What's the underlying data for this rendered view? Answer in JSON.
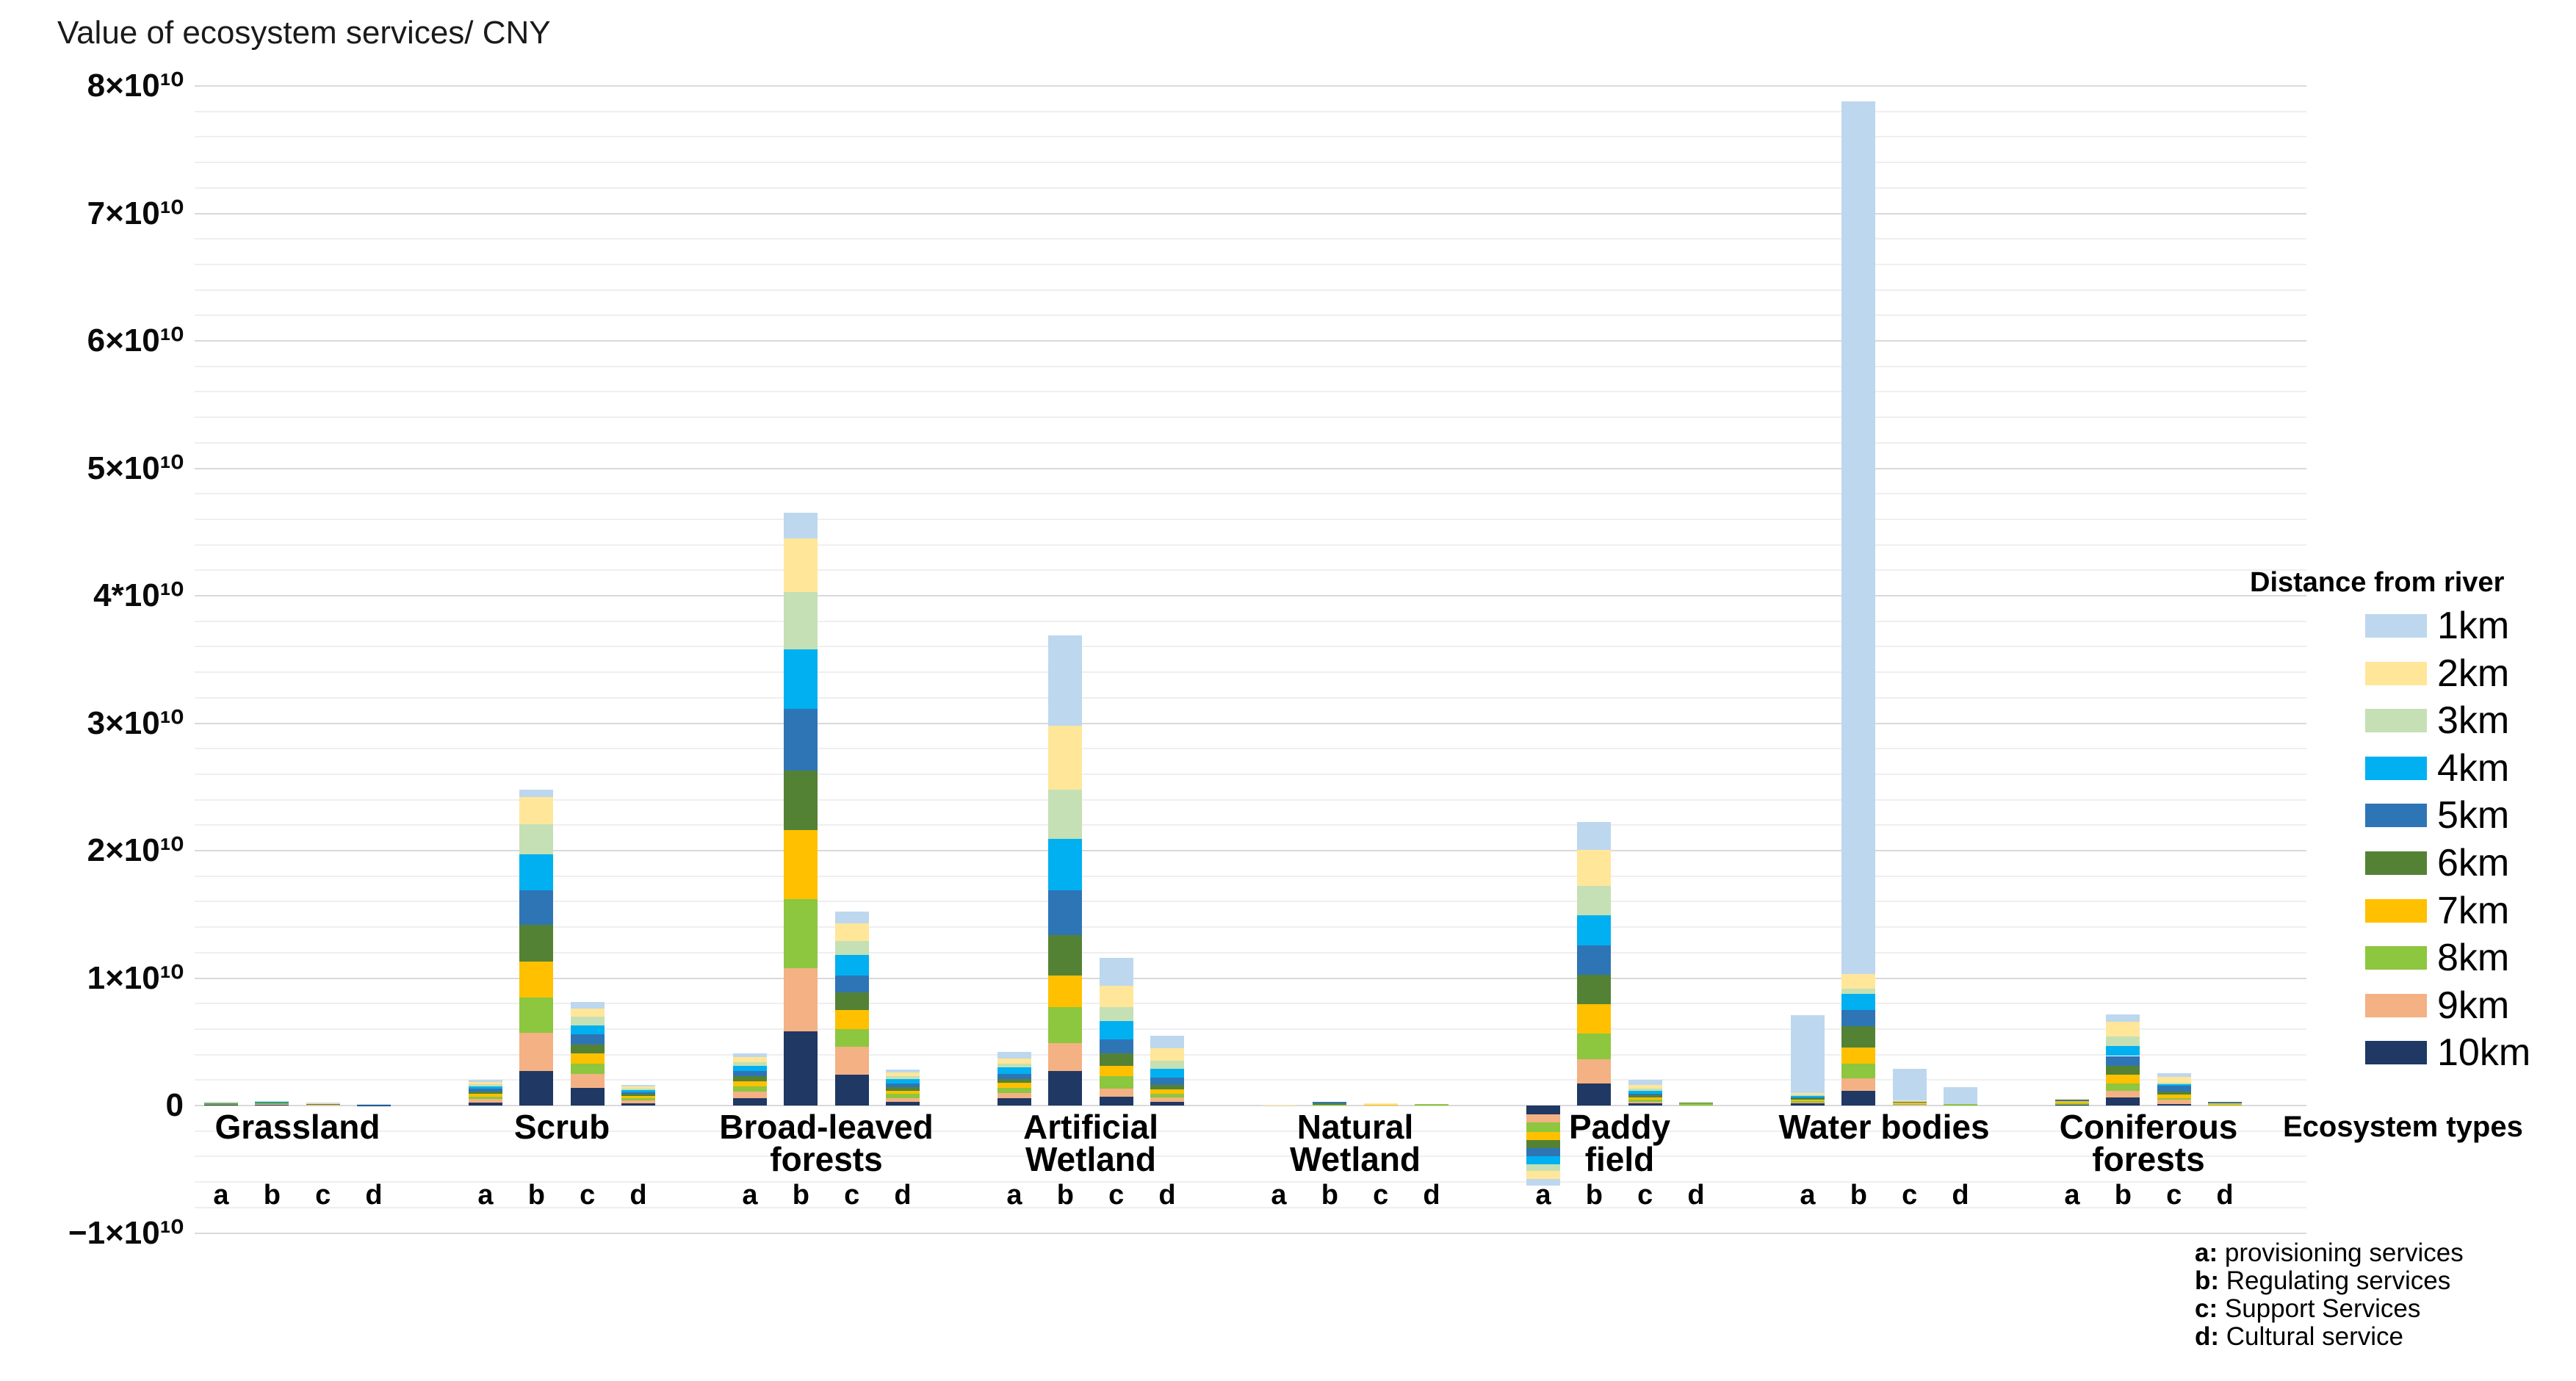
{
  "title": "Value of ecosystem services/ CNY",
  "x_axis_label": "Ecosystem types",
  "legend": {
    "title": "Distance from river",
    "items": [
      {
        "label": "1km",
        "color": "#BDD7EE"
      },
      {
        "label": "2km",
        "color": "#FFE699"
      },
      {
        "label": "3km",
        "color": "#C5E0B4"
      },
      {
        "label": "4km",
        "color": "#00B0F0"
      },
      {
        "label": "5km",
        "color": "#2E75B6"
      },
      {
        "label": "6km",
        "color": "#548235"
      },
      {
        "label": "7km",
        "color": "#FFC000"
      },
      {
        "label": "8km",
        "color": "#8DC63F"
      },
      {
        "label": "9km",
        "color": "#F4B183"
      },
      {
        "label": "10km",
        "color": "#1F3864"
      }
    ]
  },
  "footnotes": [
    {
      "key": "a:",
      "text": " provisioning services"
    },
    {
      "key": "b:",
      "text": " Regulating services"
    },
    {
      "key": "c:",
      "text": " Support Services"
    },
    {
      "key": "d:",
      "text": " Cultural service"
    }
  ],
  "y_axis": {
    "tick_labels": [
      {
        "value": 80,
        "label": "8×10¹⁰"
      },
      {
        "value": 70,
        "label": "7×10¹⁰"
      },
      {
        "value": 60,
        "label": "6×10¹⁰"
      },
      {
        "value": 50,
        "label": "5×10¹⁰"
      },
      {
        "value": 40,
        "label": "4*10¹⁰"
      },
      {
        "value": 30,
        "label": "3×10¹⁰"
      },
      {
        "value": 20,
        "label": "2×10¹⁰"
      },
      {
        "value": 10,
        "label": "1×10¹⁰"
      },
      {
        "value": 0,
        "label": "0"
      },
      {
        "value": -10,
        "label": "−1×10¹⁰"
      }
    ]
  },
  "chart_data": {
    "type": "bar",
    "stacked": true,
    "title": "Value of ecosystem services/ CNY",
    "xlabel": "Ecosystem types",
    "ylabel": "Value of ecosystem services/ CNY",
    "ylim": [
      -10000000000,
      80000000000
    ],
    "grid": "horizontal, minor every 2e9, major every 1e10",
    "legend_position": "right",
    "values_unit": "1e9 CNY",
    "series_names": [
      "1km",
      "2km",
      "3km",
      "4km",
      "5km",
      "6km",
      "7km",
      "8km",
      "9km",
      "10km"
    ],
    "categories_per_group": [
      "a",
      "b",
      "c",
      "d"
    ],
    "stack_order_note": "10km nearest the zero baseline, 1km outermost; Paddy field category a is negative",
    "groups": [
      {
        "name": "Grassland",
        "label_lines": [
          "Grassland"
        ],
        "bars": {
          "a": [
            0.02,
            0.02,
            0.02,
            0.02,
            0.02,
            0.03,
            0.03,
            0.03,
            0.04,
            0.06
          ],
          "b": [
            0.02,
            0.03,
            0.02,
            0.03,
            0.03,
            0.03,
            0.03,
            0.04,
            0.05,
            0.09
          ],
          "c": [
            0.01,
            0.02,
            0.01,
            0.02,
            0.02,
            0.02,
            0.02,
            0.02,
            0.03,
            0.04
          ],
          "d": [
            0.01,
            0.01,
            0.01,
            0.01,
            0.01,
            0.01,
            0.01,
            0.01,
            0.02,
            0.02
          ]
        }
      },
      {
        "name": "Scrub",
        "label_lines": [
          "Scrub"
        ],
        "bars": {
          "a": [
            0.15,
            0.2,
            0.15,
            0.2,
            0.2,
            0.2,
            0.2,
            0.2,
            0.25,
            0.25
          ],
          "b": [
            0.6,
            2.1,
            2.4,
            2.8,
            2.7,
            2.9,
            2.8,
            2.8,
            3.0,
            2.7
          ],
          "c": [
            0.5,
            0.6,
            0.7,
            0.7,
            0.8,
            0.7,
            0.8,
            0.8,
            1.1,
            1.4
          ],
          "d": [
            0.1,
            0.15,
            0.15,
            0.15,
            0.15,
            0.15,
            0.15,
            0.2,
            0.2,
            0.2
          ]
        }
      },
      {
        "name": "Broad-leaved forests",
        "label_lines": [
          "Broad-leaved",
          "forests"
        ],
        "bars": {
          "a": [
            0.3,
            0.4,
            0.3,
            0.4,
            0.4,
            0.4,
            0.4,
            0.4,
            0.5,
            0.6
          ],
          "b": [
            2.0,
            4.2,
            4.5,
            4.7,
            4.8,
            4.7,
            5.4,
            5.4,
            5.0,
            5.8
          ],
          "c": [
            0.9,
            1.4,
            1.1,
            1.6,
            1.3,
            1.4,
            1.5,
            1.4,
            2.2,
            2.4
          ],
          "d": [
            0.2,
            0.3,
            0.25,
            0.3,
            0.3,
            0.3,
            0.25,
            0.3,
            0.3,
            0.3
          ]
        }
      },
      {
        "name": "Artificial Wetland",
        "label_lines": [
          "Artificial",
          "Wetland"
        ],
        "bars": {
          "a": [
            0.5,
            0.4,
            0.3,
            0.5,
            0.4,
            0.3,
            0.4,
            0.4,
            0.4,
            0.6
          ],
          "b": [
            7.1,
            5.0,
            3.9,
            4.0,
            3.5,
            3.2,
            2.5,
            2.8,
            2.2,
            2.7
          ],
          "c": [
            2.2,
            1.7,
            1.1,
            1.4,
            1.1,
            1.0,
            0.8,
            1.0,
            0.6,
            0.7
          ],
          "d": [
            1.0,
            1.0,
            0.6,
            0.7,
            0.6,
            0.35,
            0.3,
            0.3,
            0.35,
            0.3
          ]
        }
      },
      {
        "name": "Natural Wetland",
        "label_lines": [
          "Natural",
          "Wetland"
        ],
        "bars": {
          "a": [
            0,
            0.05,
            0,
            0,
            0,
            0,
            0,
            0,
            0,
            0
          ],
          "b": [
            0,
            0,
            0,
            0,
            0.1,
            0.15,
            0,
            0.05,
            0,
            0
          ],
          "c": [
            0,
            0.08,
            0,
            0,
            0,
            0,
            0.07,
            0,
            0,
            0
          ],
          "d": [
            0,
            0,
            0,
            0,
            0,
            0,
            0,
            0.1,
            0,
            0
          ]
        }
      },
      {
        "name": "Paddy field",
        "label_lines": [
          "Paddy",
          "field"
        ],
        "bars": {
          "a": [
            -0.55,
            -0.6,
            -0.55,
            -0.6,
            -0.65,
            -0.65,
            -0.65,
            -0.75,
            -0.6,
            -0.7
          ],
          "b": [
            2.2,
            2.8,
            2.3,
            2.4,
            2.3,
            2.3,
            2.3,
            2.0,
            1.9,
            1.75
          ],
          "c": [
            0.4,
            0.3,
            0.15,
            0.2,
            0.15,
            0.15,
            0.2,
            0.15,
            0.15,
            0.15
          ],
          "d": [
            0,
            0,
            0,
            0,
            0,
            0.1,
            0,
            0.15,
            0,
            0
          ]
        }
      },
      {
        "name": "Water bodies",
        "label_lines": [
          "Water bodies"
        ],
        "bars": {
          "a": [
            6.1,
            0.15,
            0.1,
            0.1,
            0.1,
            0.1,
            0.1,
            0.1,
            0.1,
            0.15
          ],
          "b": [
            68.5,
            1.15,
            0.4,
            1.25,
            1.25,
            1.7,
            1.25,
            1.15,
            1.0,
            1.15
          ],
          "c": [
            2.5,
            0.05,
            0.02,
            0.03,
            0.03,
            0.05,
            0.1,
            0.05,
            0.02,
            0.05
          ],
          "d": [
            1.35,
            0,
            0,
            0,
            0,
            0,
            0,
            0.1,
            0,
            0
          ]
        }
      },
      {
        "name": "Coniferous forests",
        "label_lines": [
          "Coniferous",
          "forests"
        ],
        "bars": {
          "a": [
            0,
            0.05,
            0,
            0,
            0.1,
            0,
            0.2,
            0.1,
            0,
            0.05
          ],
          "b": [
            0.55,
            1.15,
            0.8,
            0.75,
            0.8,
            0.65,
            0.72,
            0.55,
            0.55,
            0.62
          ],
          "c": [
            0.3,
            0.45,
            0.1,
            0.15,
            0.45,
            0.25,
            0.25,
            0.15,
            0.35,
            0.1
          ],
          "d": [
            0,
            0,
            0,
            0,
            0.1,
            0,
            0.15,
            0.05,
            0,
            0
          ]
        }
      }
    ]
  }
}
